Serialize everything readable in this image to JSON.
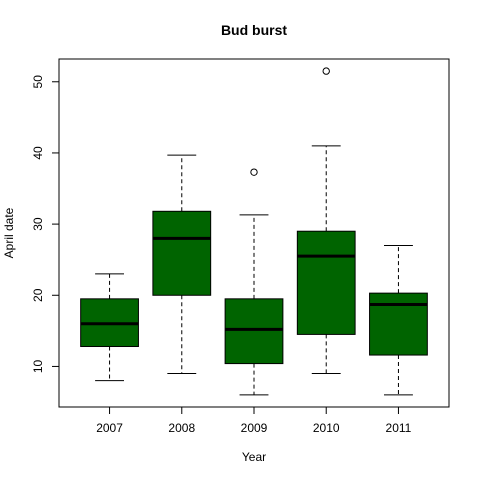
{
  "chart_data": {
    "type": "box",
    "title": "Bud burst",
    "xlabel": "Year",
    "ylabel": "April date",
    "categories": [
      "2007",
      "2008",
      "2009",
      "2010",
      "2011"
    ],
    "yticks": [
      10,
      20,
      30,
      40,
      50
    ],
    "ylim": [
      4.3,
      53.2
    ],
    "box_color": "#006400",
    "series": [
      {
        "category": "2007",
        "whisker_low": 8.0,
        "q1": 12.8,
        "median": 16.0,
        "q3": 19.5,
        "whisker_high": 23.0,
        "outliers": []
      },
      {
        "category": "2008",
        "whisker_low": 9.0,
        "q1": 20.0,
        "median": 28.0,
        "q3": 31.8,
        "whisker_high": 39.7,
        "outliers": []
      },
      {
        "category": "2009",
        "whisker_low": 6.0,
        "q1": 10.4,
        "median": 15.2,
        "q3": 19.5,
        "whisker_high": 31.3,
        "outliers": [
          37.3
        ]
      },
      {
        "category": "2010",
        "whisker_low": 9.0,
        "q1": 14.5,
        "median": 25.5,
        "q3": 29.0,
        "whisker_high": 41.0,
        "outliers": [
          51.5
        ]
      },
      {
        "category": "2011",
        "whisker_low": 6.0,
        "q1": 11.6,
        "median": 18.7,
        "q3": 20.3,
        "whisker_high": 27.0,
        "outliers": []
      }
    ]
  }
}
